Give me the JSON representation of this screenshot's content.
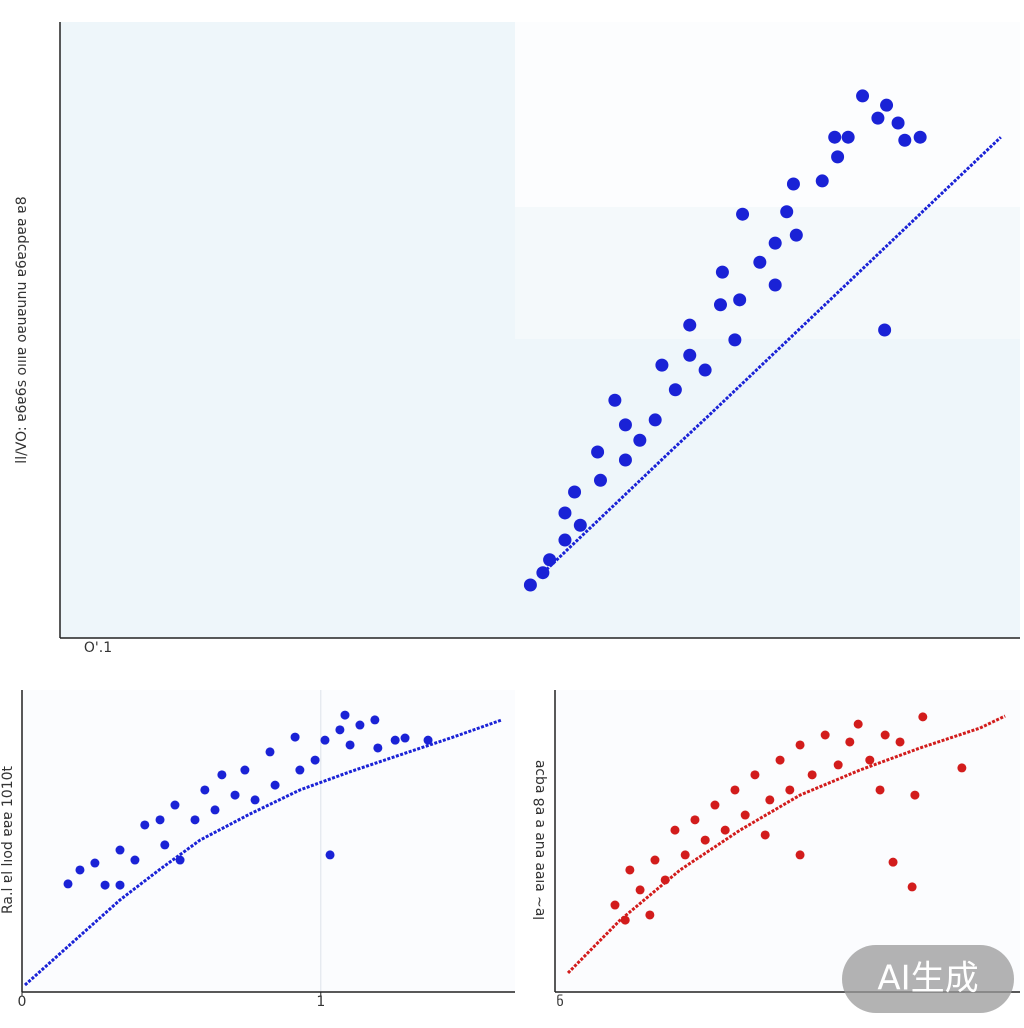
{
  "chart_data": [
    {
      "type": "scatter",
      "ylabel": "ll/VO: ɐ6ɐ6s oıııɐ oɐuɐunu ɐ6ɐɔpɐɐ ɐ8",
      "xlabel": "O'.1",
      "xlim": [
        0,
        100
      ],
      "ylim": [
        0,
        100
      ],
      "series": [
        {
          "color": "#1a22d6",
          "marker": "dot",
          "x": [
            49.0,
            50.3,
            51.0,
            52.6,
            52.6,
            53.6,
            54.2,
            56.0,
            56.3,
            57.8,
            58.9,
            58.9,
            60.4,
            62.0,
            62.7,
            64.1,
            65.6,
            65.6,
            67.2,
            68.8,
            69.0,
            70.3,
            70.8,
            71.1,
            72.9,
            74.5,
            74.5,
            75.7,
            76.4,
            76.7,
            79.4,
            80.7,
            81.0,
            82.1,
            83.6,
            85.2,
            86.1,
            85.9,
            87.3,
            88.0,
            89.6
          ],
          "values": [
            8.6,
            10.6,
            12.7,
            15.9,
            20.3,
            23.7,
            18.3,
            30.2,
            25.6,
            38.6,
            34.6,
            28.9,
            32.1,
            35.4,
            44.3,
            40.3,
            50.8,
            45.9,
            43.5,
            54.1,
            59.4,
            48.4,
            54.9,
            68.8,
            61.0,
            64.1,
            57.3,
            69.2,
            73.7,
            65.4,
            74.2,
            81.3,
            78.1,
            81.3,
            88.0,
            84.4,
            86.5,
            50.0,
            83.6,
            80.8,
            81.3
          ]
        },
        {
          "color": "#1a22d6",
          "marker": "line",
          "x": [
            50,
            53.5,
            57,
            60.5,
            64,
            67.5,
            71,
            74.5,
            78,
            81.5,
            85,
            88.5,
            92,
            95.5,
            98
          ],
          "values": [
            10.1,
            15.3,
            20.5,
            25.7,
            30.9,
            36.0,
            41.2,
            46.4,
            51.6,
            56.8,
            62.0,
            67.2,
            72.4,
            77.6,
            81.3
          ]
        }
      ]
    },
    {
      "type": "scatter",
      "ylabel": "Ra.l ɐl lıod ɐɐɐ 1010t",
      "xlim": [
        0,
        1.65
      ],
      "ylim": [
        0,
        100
      ],
      "xticks": [
        0,
        1
      ],
      "grid": true,
      "series": [
        {
          "color": "#1a22d6",
          "marker": "dot",
          "x": [
            0.154,
            0.194,
            0.244,
            0.278,
            0.328,
            0.328,
            0.378,
            0.411,
            0.462,
            0.478,
            0.512,
            0.529,
            0.579,
            0.612,
            0.646,
            0.669,
            0.713,
            0.746,
            0.78,
            0.83,
            0.847,
            0.914,
            0.93,
            0.981,
            1.014,
            1.031,
            1.064,
            1.081,
            1.098,
            1.131,
            1.181,
            1.191,
            1.249,
            1.282,
            1.359
          ],
          "values": [
            35.8,
            40.4,
            42.7,
            35.4,
            35.4,
            47.0,
            43.7,
            55.3,
            57.0,
            48.7,
            61.9,
            43.7,
            57.0,
            66.9,
            60.3,
            71.9,
            65.2,
            73.5,
            63.6,
            79.5,
            68.5,
            84.4,
            73.5,
            76.8,
            83.4,
            45.4,
            86.8,
            91.7,
            81.8,
            88.4,
            90.1,
            80.8,
            83.4,
            84.1,
            83.4
          ]
        },
        {
          "color": "#1a22d6",
          "marker": "line",
          "x": [
            0.01,
            0.17,
            0.328,
            0.46,
            0.596,
            0.76,
            0.93,
            1.1,
            1.265,
            1.44,
            1.606
          ],
          "values": [
            2.3,
            16.5,
            30.5,
            40.5,
            50.3,
            58.8,
            66.9,
            73.0,
            78.5,
            84.3,
            90.1
          ]
        }
      ]
    },
    {
      "type": "scatter",
      "ylabel": "lɐ~ ɐıɐɐ ɐuɐ ɐ ɐ8 ɐqɔɐ",
      "xlabel": "ნ",
      "xlim": [
        0,
        100
      ],
      "ylim": [
        0,
        100
      ],
      "series": [
        {
          "color": "#d21c1c",
          "marker": "dot",
          "x": [
            12.9,
            15.1,
            16.1,
            18.3,
            20.4,
            21.5,
            23.7,
            25.8,
            28.0,
            30.1,
            32.3,
            34.4,
            36.6,
            38.7,
            40.9,
            43.0,
            45.2,
            46.2,
            48.4,
            50.5,
            52.7,
            52.7,
            55.3,
            58.1,
            60.9,
            63.4,
            65.2,
            67.7,
            69.9,
            71.0,
            72.7,
            74.2,
            76.8,
            77.4,
            79.1,
            87.5
          ],
          "values": [
            28.8,
            23.8,
            40.4,
            33.8,
            25.5,
            43.7,
            37.1,
            53.6,
            45.4,
            57.0,
            50.3,
            61.9,
            53.6,
            66.9,
            58.6,
            71.9,
            52.0,
            63.6,
            76.8,
            66.9,
            81.8,
            45.4,
            71.9,
            85.1,
            75.2,
            82.8,
            88.7,
            76.8,
            66.9,
            85.1,
            43.0,
            82.8,
            34.8,
            65.2,
            91.1,
            74.2
          ]
        },
        {
          "color": "#d21c1c",
          "marker": "line",
          "x": [
            2.8,
            14.0,
            26.9,
            39.8,
            52.7,
            65.6,
            78.5,
            91.4,
            96.8
          ],
          "values": [
            6.3,
            23.8,
            40.4,
            53.6,
            65.2,
            73.5,
            80.8,
            87.4,
            91.4
          ]
        }
      ]
    }
  ],
  "watermark": "AI生成"
}
